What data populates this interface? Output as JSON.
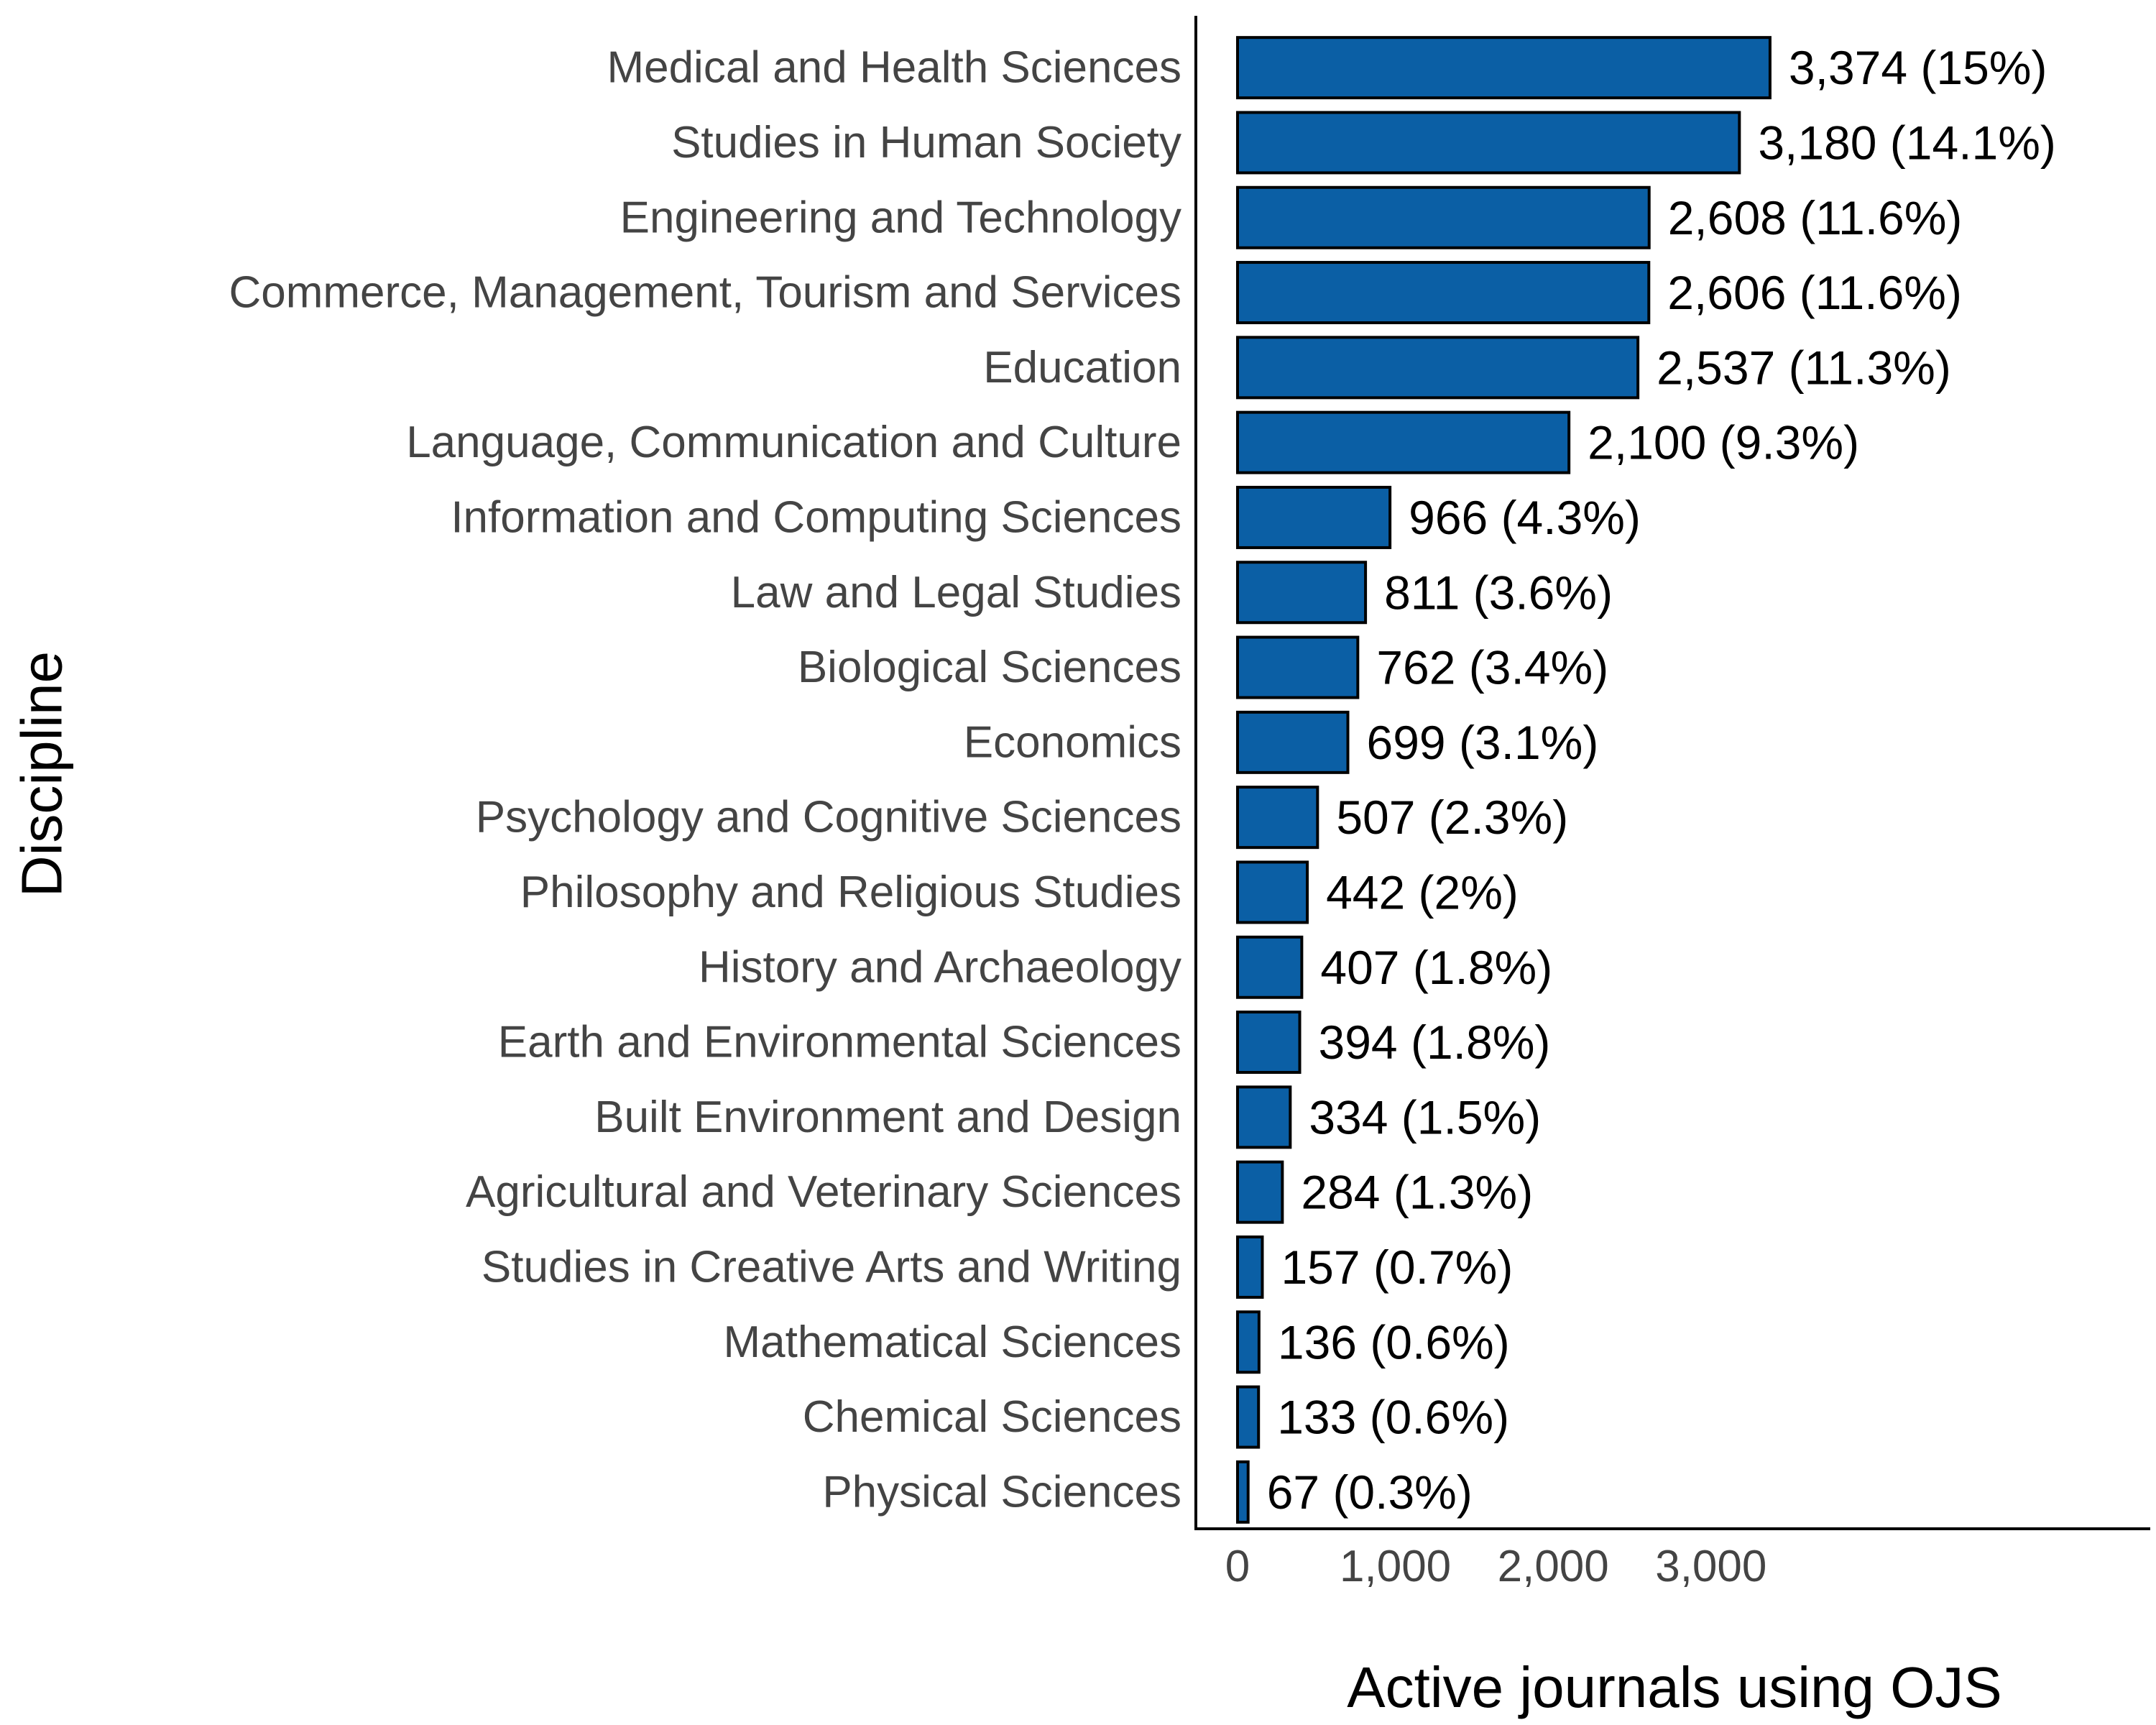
{
  "chart_data": {
    "type": "bar",
    "orientation": "horizontal",
    "xlabel": "Active journals using OJS",
    "ylabel": "Discipline",
    "xlim": [
      0,
      6000
    ],
    "xticks": [
      0,
      1000,
      2000,
      3000
    ],
    "xtick_labels": [
      "0",
      "1,000",
      "2,000",
      "3,000"
    ],
    "grid": false,
    "bar_color": "#0b5fa5",
    "bar_edge_color": "#000000",
    "categories": [
      "Medical and Health Sciences",
      "Studies in Human Society",
      "Engineering and Technology",
      "Commerce, Management, Tourism and Services",
      "Education",
      "Language, Communication and Culture",
      "Information and Computing Sciences",
      "Law and Legal Studies",
      "Biological Sciences",
      "Economics",
      "Psychology and Cognitive Sciences",
      "Philosophy and Religious Studies",
      "History and Archaeology",
      "Earth and Environmental Sciences",
      "Built Environment and Design",
      "Agricultural and Veterinary Sciences",
      "Studies in Creative Arts and Writing",
      "Mathematical Sciences",
      "Chemical Sciences",
      "Physical Sciences"
    ],
    "values": [
      3374,
      3180,
      2608,
      2606,
      2537,
      2100,
      966,
      811,
      762,
      699,
      507,
      442,
      407,
      394,
      334,
      284,
      157,
      136,
      133,
      67
    ],
    "data_labels": [
      "3,374 (15%)",
      "3,180 (14.1%)",
      "2,608 (11.6%)",
      "2,606 (11.6%)",
      "2,537 (11.3%)",
      "2,100 (9.3%)",
      "966 (4.3%)",
      "811 (3.6%)",
      "762 (3.4%)",
      "699 (3.1%)",
      "507 (2.3%)",
      "442 (2%)",
      "407 (1.8%)",
      "394 (1.8%)",
      "334 (1.5%)",
      "284 (1.3%)",
      "157 (0.7%)",
      "136 (0.6%)",
      "133 (0.6%)",
      "67 (0.3%)"
    ]
  }
}
